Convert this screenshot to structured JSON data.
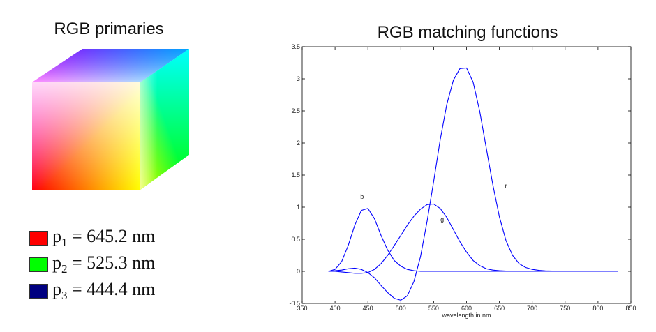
{
  "cube": {
    "title": "RGB primaries",
    "colors": {
      "black": "#000000",
      "red": "#ff0000",
      "green": "#00ff00",
      "blue": "#0000ff",
      "yellow": "#ffff00",
      "magenta": "#ff00ff",
      "cyan": "#00ffff",
      "white": "#ffffff"
    }
  },
  "legend": [
    {
      "symbol": "p",
      "sub": "1",
      "text": " = 645.2 nm",
      "color": "#ff0000"
    },
    {
      "symbol": "p",
      "sub": "2",
      "text": " = 525.3 nm",
      "color": "#00ff00"
    },
    {
      "symbol": "p",
      "sub": "3",
      "text": " = 444.4 nm",
      "color": "#000080"
    }
  ],
  "chart_data": {
    "type": "line",
    "title": "RGB matching functions",
    "xlabel": "wavelength in nm",
    "ylabel": "",
    "xlim": [
      350,
      850
    ],
    "ylim": [
      -0.5,
      3.5
    ],
    "xticks": [
      350,
      400,
      450,
      500,
      550,
      600,
      650,
      700,
      750,
      800,
      850
    ],
    "yticks": [
      -0.5,
      0,
      0.5,
      1,
      1.5,
      2,
      2.5,
      3,
      3.5
    ],
    "line_color": "#0000ff",
    "grid": false,
    "series": [
      {
        "name": "r",
        "label_at": [
          660,
          1.3
        ],
        "x": [
          390,
          400,
          410,
          420,
          430,
          440,
          450,
          460,
          470,
          480,
          490,
          500,
          510,
          520,
          530,
          540,
          550,
          560,
          570,
          580,
          590,
          600,
          610,
          620,
          630,
          640,
          650,
          660,
          670,
          680,
          690,
          700,
          710,
          720,
          730,
          740,
          750,
          760,
          770,
          780,
          790,
          800,
          810,
          820,
          830
        ],
        "y": [
          0.0,
          0.01,
          0.02,
          0.04,
          0.05,
          0.03,
          -0.02,
          -0.1,
          -0.22,
          -0.33,
          -0.42,
          -0.45,
          -0.38,
          -0.16,
          0.23,
          0.78,
          1.4,
          2.05,
          2.6,
          2.98,
          3.16,
          3.17,
          2.95,
          2.5,
          1.92,
          1.35,
          0.85,
          0.48,
          0.25,
          0.12,
          0.06,
          0.03,
          0.015,
          0.008,
          0.004,
          0.002,
          0.001,
          0,
          0,
          0,
          0,
          0,
          0,
          0,
          0
        ]
      },
      {
        "name": "g",
        "label_at": [
          563,
          0.77
        ],
        "x": [
          390,
          400,
          410,
          420,
          430,
          440,
          450,
          460,
          470,
          480,
          490,
          500,
          510,
          520,
          530,
          540,
          550,
          560,
          570,
          580,
          590,
          600,
          610,
          620,
          630,
          640,
          650,
          660,
          670,
          680,
          690,
          700,
          710,
          720,
          730,
          740,
          750,
          760,
          770,
          780,
          790,
          800,
          810,
          820,
          830
        ],
        "y": [
          0.0,
          0.0,
          -0.01,
          -0.02,
          -0.03,
          -0.03,
          -0.02,
          0.03,
          0.12,
          0.25,
          0.4,
          0.56,
          0.72,
          0.86,
          0.97,
          1.04,
          1.05,
          0.98,
          0.84,
          0.65,
          0.46,
          0.3,
          0.17,
          0.09,
          0.04,
          0.02,
          0.01,
          0.005,
          0.002,
          0.001,
          0,
          0,
          0,
          0,
          0,
          0,
          0,
          0,
          0,
          0,
          0,
          0,
          0,
          0,
          0
        ]
      },
      {
        "name": "b",
        "label_at": [
          441,
          1.13
        ],
        "x": [
          390,
          400,
          410,
          420,
          430,
          440,
          450,
          460,
          470,
          480,
          490,
          500,
          510,
          520,
          530,
          540,
          550,
          560,
          570,
          580,
          590,
          600,
          610,
          620,
          630,
          640,
          650,
          660,
          670,
          680,
          690,
          700,
          710,
          720,
          730,
          740,
          750,
          760,
          770,
          780,
          790,
          800,
          810,
          820,
          830
        ],
        "y": [
          0.0,
          0.03,
          0.15,
          0.4,
          0.72,
          0.95,
          0.98,
          0.82,
          0.56,
          0.33,
          0.17,
          0.08,
          0.03,
          0.01,
          0,
          0,
          0,
          0,
          0,
          0,
          0,
          0,
          0,
          0,
          0,
          0,
          0,
          0,
          0,
          0,
          0,
          0,
          0,
          0,
          0,
          0,
          0,
          0,
          0,
          0,
          0,
          0,
          0,
          0,
          0
        ]
      }
    ]
  }
}
